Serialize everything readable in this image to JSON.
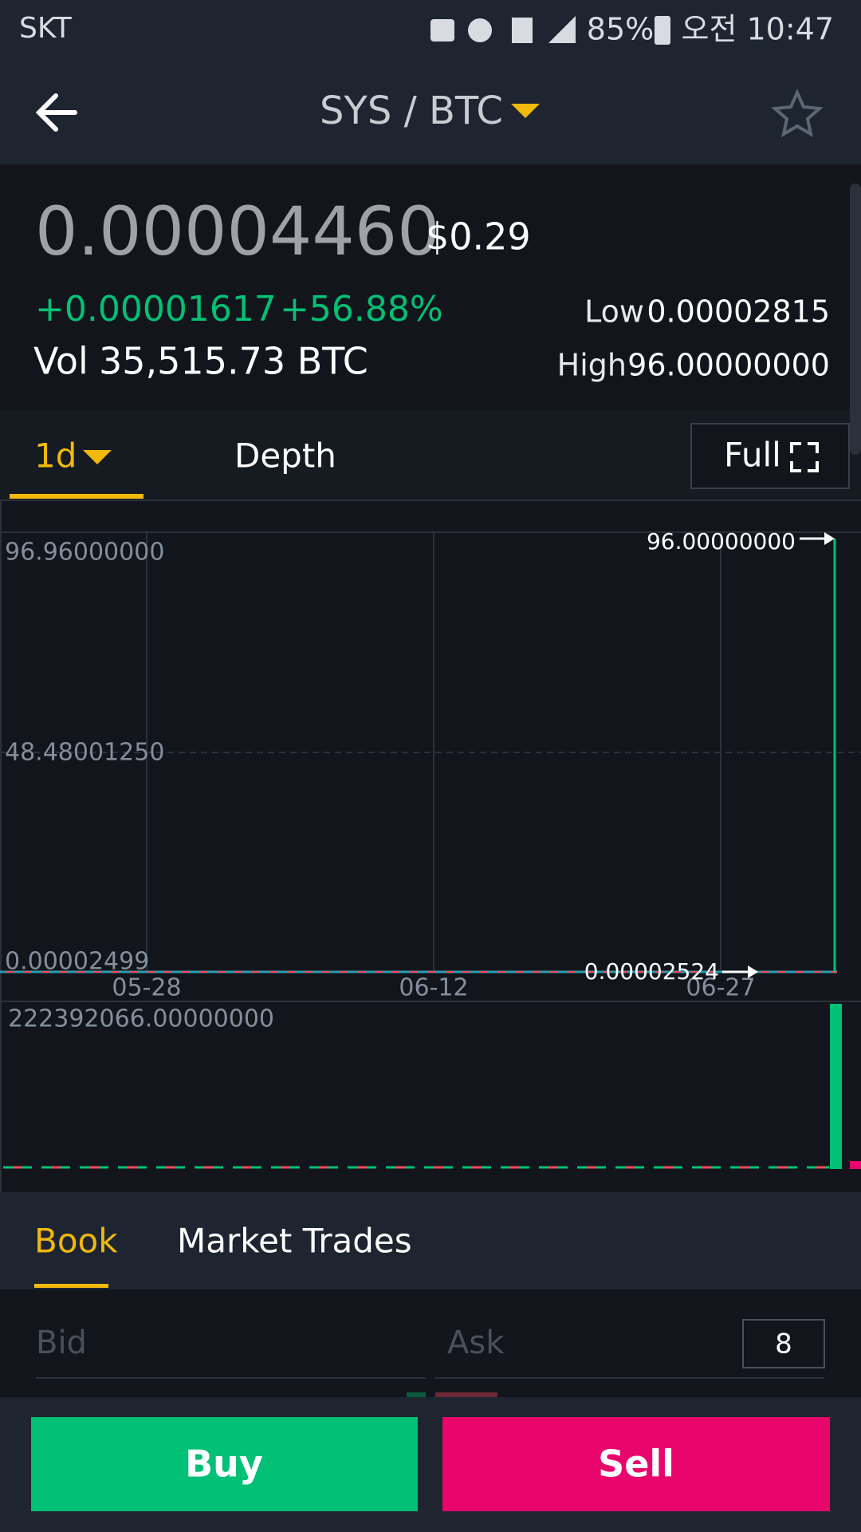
{
  "status_bar": {
    "carrier": "SKT",
    "battery": "85%",
    "time": "오전 10:47"
  },
  "header": {
    "title": "SYS / BTC"
  },
  "ticker": {
    "price": "0.00004460",
    "usd_price": "$0.29",
    "change": "+0.00001617",
    "change_percent": "+56.88%",
    "volume_label": "Vol",
    "volume": "35,515.73 BTC",
    "low_label": "Low",
    "low": "0.00002815",
    "high_label": "High",
    "high": "96.00000000"
  },
  "chart_tabs": {
    "interval": "1d",
    "depth": "Depth",
    "full": "Full"
  },
  "chart": {
    "price_axis": [
      "96.96000000",
      "48.48001250",
      "0.00002499"
    ],
    "dates": [
      "05-28",
      "06-12",
      "06-27"
    ],
    "high_marker": "96.00000000",
    "last_marker": "0.00002524",
    "volume_axis": "222392066.00000000"
  },
  "book_tabs": {
    "book": "Book",
    "market_trades": "Market Trades"
  },
  "order_book": {
    "bid": "Bid",
    "ask": "Ask",
    "depth": "8"
  },
  "actions": {
    "buy": "Buy",
    "sell": "Sell"
  }
}
